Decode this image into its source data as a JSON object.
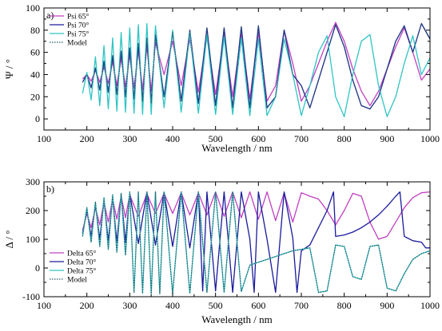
{
  "chart_data": [
    {
      "type": "line",
      "panel_label": "a)",
      "xlabel": "Wavelength / nm",
      "ylabel": "Ψ / °",
      "xlim": [
        100,
        1000
      ],
      "ylim": [
        -10,
        100
      ],
      "x_ticks": [
        100,
        200,
        300,
        400,
        500,
        600,
        700,
        800,
        900,
        1000
      ],
      "y_ticks": [
        0,
        20,
        40,
        60,
        80,
        100
      ],
      "grid": false,
      "legend_position": "top-left",
      "series": [
        {
          "name": "Psi 65°",
          "color": "#c040c0",
          "dash": "solid",
          "x": [
            190,
            200,
            210,
            220,
            230,
            240,
            250,
            260,
            270,
            280,
            290,
            300,
            310,
            320,
            330,
            340,
            350,
            360,
            380,
            400,
            420,
            440,
            460,
            480,
            500,
            520,
            540,
            560,
            580,
            600,
            620,
            640,
            660,
            680,
            700,
            720,
            740,
            760,
            780,
            800,
            820,
            840,
            860,
            880,
            900,
            920,
            940,
            960,
            980,
            1000
          ],
          "y": [
            36,
            40,
            34,
            44,
            33,
            47,
            32,
            52,
            30,
            55,
            29,
            58,
            28,
            62,
            26,
            66,
            25,
            69,
            40,
            70,
            30,
            72,
            24,
            74,
            22,
            76,
            20,
            77,
            18,
            78,
            16,
            30,
            80,
            50,
            16,
            30,
            50,
            70,
            87,
            70,
            45,
            25,
            12,
            25,
            45,
            65,
            82,
            60,
            35,
            45
          ]
        },
        {
          "name": "Psi 70°",
          "color": "#1a1a9c",
          "dash": "solid",
          "x": [
            190,
            200,
            210,
            220,
            230,
            240,
            250,
            260,
            270,
            280,
            290,
            300,
            310,
            320,
            330,
            340,
            350,
            360,
            380,
            400,
            420,
            440,
            460,
            480,
            500,
            520,
            540,
            560,
            580,
            600,
            620,
            640,
            660,
            680,
            700,
            720,
            740,
            760,
            780,
            800,
            820,
            840,
            860,
            880,
            900,
            920,
            940,
            960,
            980,
            1000
          ],
          "y": [
            33,
            40,
            28,
            46,
            26,
            52,
            24,
            57,
            22,
            61,
            20,
            64,
            18,
            68,
            16,
            73,
            14,
            76,
            20,
            78,
            16,
            80,
            14,
            82,
            12,
            82,
            10,
            83,
            10,
            84,
            10,
            20,
            80,
            40,
            30,
            10,
            35,
            60,
            85,
            65,
            35,
            12,
            9,
            20,
            45,
            70,
            84,
            60,
            86,
            72
          ]
        },
        {
          "name": "Psi 75°",
          "color": "#2fc4c4",
          "dash": "solid",
          "x": [
            190,
            200,
            210,
            220,
            230,
            240,
            250,
            260,
            270,
            280,
            290,
            300,
            310,
            320,
            330,
            340,
            350,
            360,
            380,
            400,
            420,
            440,
            460,
            480,
            500,
            520,
            540,
            560,
            580,
            600,
            620,
            640,
            660,
            680,
            700,
            720,
            740,
            760,
            780,
            800,
            820,
            840,
            860,
            880,
            900,
            920,
            940,
            960,
            980,
            1000
          ],
          "y": [
            23,
            42,
            17,
            56,
            12,
            66,
            9,
            73,
            7,
            78,
            6,
            82,
            5,
            85,
            4,
            86,
            4,
            84,
            10,
            80,
            6,
            78,
            5,
            76,
            4,
            74,
            4,
            73,
            3,
            72,
            3,
            20,
            72,
            40,
            3,
            30,
            60,
            75,
            20,
            2,
            40,
            70,
            76,
            30,
            2,
            20,
            50,
            75,
            40,
            55
          ]
        },
        {
          "name": "Model",
          "color": "#2a5a6a",
          "dash": "dotted",
          "x": [
            190,
            200,
            210,
            220,
            230,
            240,
            250,
            260,
            270,
            280,
            290,
            300,
            310,
            320,
            330,
            340,
            350,
            360,
            380,
            400,
            420,
            440,
            460,
            480,
            500,
            520,
            540,
            560,
            580,
            600,
            620,
            640,
            660,
            680,
            700,
            720,
            740,
            760,
            780,
            800,
            820,
            840,
            860,
            880,
            900,
            920,
            940,
            960,
            980,
            1000
          ],
          "y": [
            33,
            40,
            28,
            46,
            26,
            52,
            24,
            57,
            22,
            61,
            20,
            64,
            18,
            68,
            16,
            73,
            14,
            76,
            20,
            78,
            16,
            80,
            14,
            82,
            12,
            82,
            10,
            83,
            10,
            84,
            10,
            20,
            80,
            40,
            30,
            10,
            35,
            60,
            85,
            65,
            35,
            12,
            9,
            20,
            45,
            70,
            84,
            60,
            86,
            72
          ]
        }
      ]
    },
    {
      "type": "line",
      "panel_label": "b)",
      "xlabel": "Wavelength / nm",
      "ylabel": "Δ / °",
      "xlim": [
        100,
        1000
      ],
      "ylim": [
        -100,
        300
      ],
      "x_ticks": [
        100,
        200,
        300,
        400,
        500,
        600,
        700,
        800,
        900,
        1000
      ],
      "y_ticks": [
        -100,
        0,
        100,
        200,
        300
      ],
      "grid": false,
      "legend_position": "bottom-left",
      "series": [
        {
          "name": "Delta 65°",
          "color": "#c040c0",
          "dash": "solid",
          "x": [
            190,
            200,
            210,
            220,
            230,
            240,
            250,
            260,
            270,
            280,
            290,
            300,
            320,
            340,
            360,
            380,
            400,
            420,
            440,
            460,
            480,
            500,
            520,
            540,
            560,
            580,
            600,
            620,
            640,
            660,
            680,
            700,
            720,
            740,
            760,
            780,
            800,
            820,
            840,
            860,
            880,
            900,
            920,
            940,
            960,
            980,
            1000
          ],
          "y": [
            130,
            190,
            140,
            210,
            150,
            230,
            160,
            240,
            170,
            250,
            175,
            255,
            180,
            258,
            190,
            260,
            190,
            262,
            185,
            262,
            185,
            265,
            180,
            265,
            175,
            265,
            170,
            265,
            165,
            262,
            160,
            262,
            250,
            240,
            200,
            150,
            200,
            260,
            250,
            160,
            100,
            110,
            160,
            210,
            245,
            262,
            265
          ]
        },
        {
          "name": "Delta 70°",
          "color": "#1a1a9c",
          "dash": "solid",
          "x": [
            190,
            200,
            210,
            220,
            230,
            240,
            250,
            260,
            270,
            280,
            290,
            300,
            320,
            340,
            360,
            380,
            400,
            420,
            440,
            460,
            470,
            480,
            500,
            520,
            540,
            560,
            580,
            590,
            600,
            620,
            640,
            660,
            680,
            690,
            700,
            720,
            760,
            775,
            780,
            800,
            820,
            840,
            860,
            880,
            900,
            920,
            930,
            940,
            960,
            980,
            990,
            1000
          ],
          "y": [
            120,
            200,
            110,
            220,
            100,
            235,
            95,
            245,
            90,
            255,
            88,
            260,
            85,
            265,
            80,
            265,
            75,
            265,
            70,
            265,
            -80,
            265,
            -80,
            265,
            -85,
            265,
            100,
            -85,
            265,
            100,
            -85,
            265,
            105,
            -85,
            60,
            80,
            200,
            265,
            110,
            115,
            125,
            140,
            160,
            185,
            215,
            250,
            265,
            110,
            95,
            90,
            70,
            70
          ]
        },
        {
          "name": "Delta 75°",
          "color": "#2fc4c4",
          "dash": "solid",
          "x": [
            190,
            200,
            210,
            220,
            230,
            240,
            250,
            260,
            270,
            280,
            290,
            300,
            310,
            320,
            330,
            340,
            350,
            360,
            370,
            380,
            400,
            420,
            440,
            460,
            480,
            500,
            520,
            540,
            560,
            580,
            600,
            620,
            640,
            660,
            680,
            700,
            720,
            740,
            760,
            780,
            800,
            820,
            840,
            860,
            880,
            900,
            920,
            940,
            960,
            980,
            1000
          ],
          "y": [
            110,
            210,
            90,
            230,
            75,
            245,
            65,
            255,
            55,
            260,
            45,
            265,
            -85,
            265,
            -88,
            265,
            -90,
            265,
            -90,
            265,
            -90,
            265,
            -88,
            265,
            -85,
            265,
            -85,
            265,
            -82,
            10,
            20,
            30,
            40,
            50,
            60,
            65,
            70,
            -85,
            -80,
            80,
            75,
            -30,
            -40,
            75,
            80,
            -70,
            -80,
            -20,
            30,
            50,
            60
          ]
        },
        {
          "name": "Model",
          "color": "#2a5a6a",
          "dash": "dotted",
          "x": [
            190,
            200,
            210,
            220,
            230,
            240,
            250,
            260,
            270,
            280,
            290,
            300,
            310,
            320,
            330,
            340,
            350,
            360,
            370,
            380,
            400,
            420,
            440,
            460,
            480,
            500,
            520,
            540,
            560,
            580,
            600,
            620,
            640,
            660,
            680,
            700,
            720,
            740,
            760,
            780,
            800,
            820,
            840,
            860,
            880,
            900,
            920,
            940,
            960,
            980,
            1000
          ],
          "y": [
            110,
            210,
            90,
            230,
            75,
            245,
            65,
            255,
            55,
            260,
            45,
            265,
            -85,
            265,
            -88,
            265,
            -90,
            265,
            -90,
            265,
            -90,
            265,
            -88,
            265,
            -85,
            265,
            -85,
            265,
            -82,
            10,
            20,
            30,
            40,
            50,
            60,
            65,
            70,
            -85,
            -80,
            80,
            75,
            -30,
            -40,
            75,
            80,
            -70,
            -80,
            -20,
            30,
            50,
            60
          ]
        }
      ]
    }
  ]
}
